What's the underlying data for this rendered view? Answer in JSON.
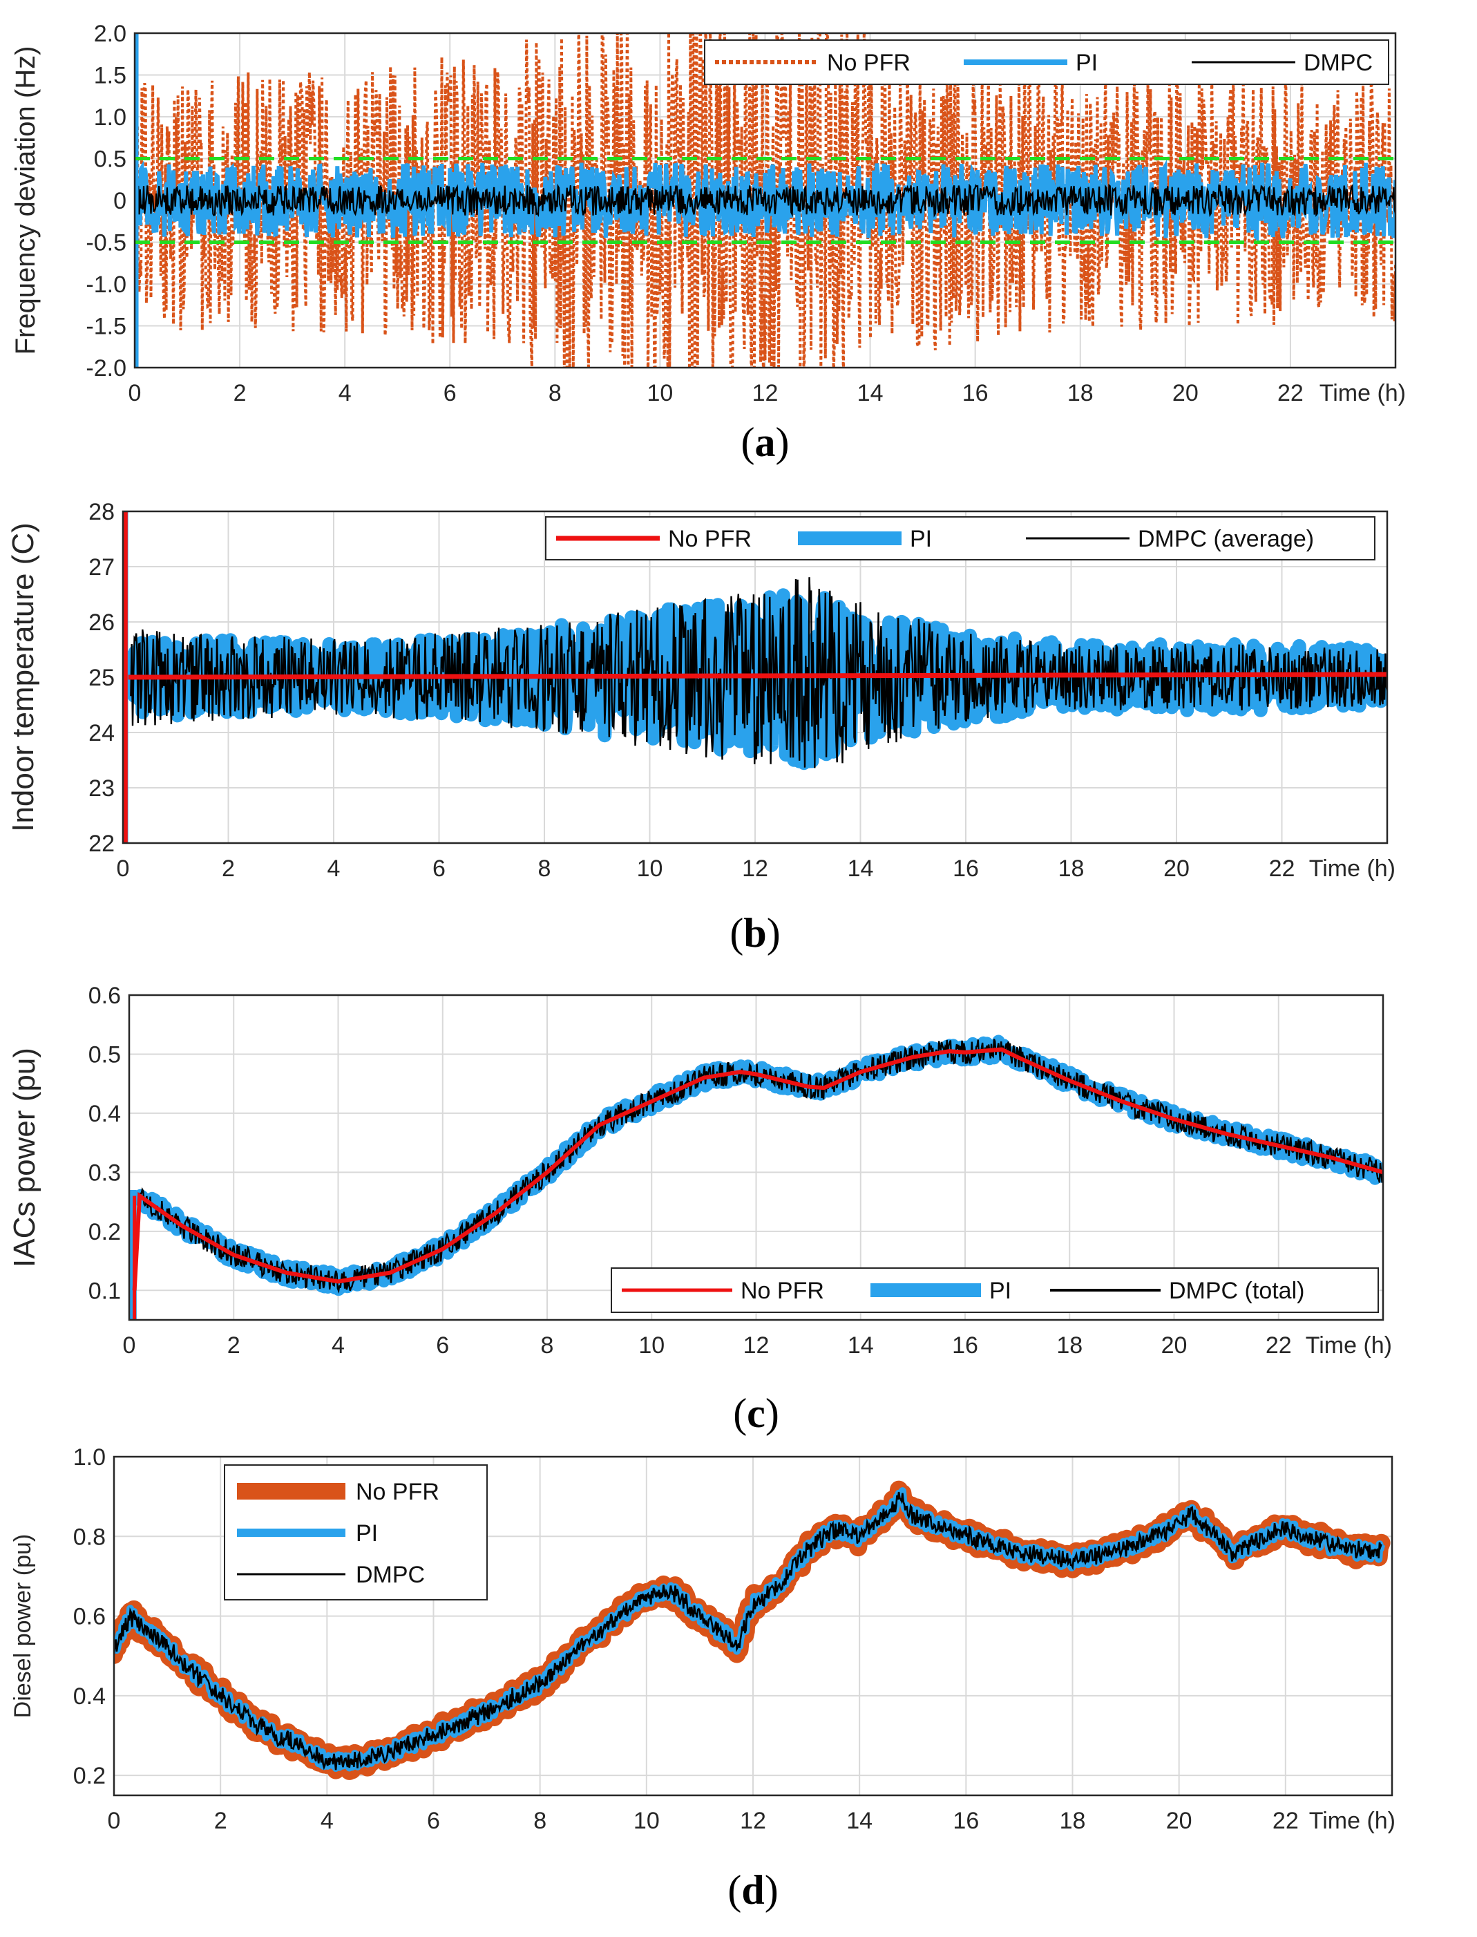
{
  "colors": {
    "orange": "#D95319",
    "blue": "#2AA2EC",
    "black": "#000000",
    "red": "#EE1111",
    "green": "#22DD22"
  },
  "chart_data": [
    {
      "panel": "a",
      "caption": "a",
      "type": "line",
      "ylabel": "Frequency deviation (Hz)",
      "xlabel": "Time (h)",
      "xlim": [
        0,
        24
      ],
      "ylim": [
        -2,
        2
      ],
      "xticks": [
        "0",
        "2",
        "4",
        "6",
        "8",
        "10",
        "12",
        "14",
        "16",
        "18",
        "20",
        "22"
      ],
      "yticks": [
        "-2.0",
        "-1.5",
        "-1.0",
        "-0.5",
        "0",
        "0.5",
        "1.0",
        "1.5",
        "2.0"
      ],
      "reference_lines": [
        0.5,
        -0.5
      ],
      "legend": {
        "placement": "top-right",
        "layout": "horizontal",
        "entries": [
          "No PFR",
          "PI",
          "DMPC"
        ]
      },
      "series": [
        {
          "name": "No PFR",
          "style": "dotted",
          "color": "#D95319",
          "noise_amplitude": 1.6,
          "peak_near_h": 11,
          "saturates_at": [
            -2,
            2
          ]
        },
        {
          "name": "PI",
          "style": "thick",
          "color": "#2AA2EC",
          "noise_amplitude": 0.45
        },
        {
          "name": "DMPC",
          "style": "solid",
          "color": "#000000",
          "noise_amplitude": 0.18
        }
      ]
    },
    {
      "panel": "b",
      "caption": "b",
      "type": "line",
      "ylabel": "Indoor temperature (C)",
      "xlabel": "Time (h)",
      "xlim": [
        0,
        24
      ],
      "ylim": [
        22,
        28
      ],
      "xticks": [
        "0",
        "2",
        "4",
        "6",
        "8",
        "10",
        "12",
        "14",
        "16",
        "18",
        "20",
        "22"
      ],
      "yticks": [
        "22",
        "23",
        "24",
        "25",
        "26",
        "27",
        "28"
      ],
      "legend": {
        "placement": "top-right",
        "layout": "horizontal",
        "entries": [
          "No PFR",
          "PI",
          "DMPC (average)"
        ]
      },
      "series": [
        {
          "name": "No PFR",
          "color": "#EE1111",
          "x": [
            0.1,
            24
          ],
          "y": [
            25.0,
            25.05
          ]
        },
        {
          "name": "PI",
          "color": "#2AA2EC",
          "mean": 25.0,
          "envelope": {
            "x": [
              0,
              2,
              4,
              6,
              8,
              10,
              12,
              13,
              14,
              16,
              18,
              20,
              22,
              24
            ],
            "amp": [
              0.7,
              0.7,
              0.6,
              0.7,
              0.9,
              1.2,
              1.4,
              1.6,
              1.2,
              0.8,
              0.6,
              0.6,
              0.6,
              0.5
            ]
          }
        },
        {
          "name": "DMPC (average)",
          "color": "#000000",
          "mean": 25.0,
          "envelope": {
            "x": [
              0,
              2,
              4,
              6,
              8,
              10,
              12,
              13,
              14,
              16,
              18,
              20,
              22,
              24
            ],
            "amp": [
              0.9,
              0.8,
              0.7,
              0.8,
              1.0,
              1.3,
              1.6,
              1.9,
              1.4,
              0.8,
              0.6,
              0.6,
              0.6,
              0.5
            ]
          }
        }
      ]
    },
    {
      "panel": "c",
      "caption": "c",
      "type": "line",
      "ylabel": "IACs  power (pu)",
      "xlabel": "Time (h)",
      "xlim": [
        0,
        24
      ],
      "ylim": [
        0.05,
        0.6
      ],
      "xticks": [
        "0",
        "2",
        "4",
        "6",
        "8",
        "10",
        "12",
        "14",
        "16",
        "18",
        "20",
        "22"
      ],
      "yticks": [
        "0.1",
        "0.2",
        "0.3",
        "0.4",
        "0.5",
        "0.6"
      ],
      "legend": {
        "placement": "bottom-right",
        "layout": "horizontal",
        "entries": [
          "No PFR",
          "PI",
          "DMPC (total)"
        ]
      },
      "series": [
        {
          "name": "No PFR",
          "color": "#EE1111",
          "x": [
            0.1,
            0.2,
            1,
            2,
            3,
            4,
            5,
            6,
            7,
            8,
            9,
            10,
            11,
            11.7,
            12,
            13,
            13.3,
            14,
            15,
            15.7,
            16,
            16.7,
            17,
            18,
            19,
            20,
            21,
            22,
            23,
            24
          ],
          "y": [
            0.1,
            0.26,
            0.21,
            0.16,
            0.13,
            0.115,
            0.13,
            0.17,
            0.23,
            0.3,
            0.38,
            0.42,
            0.46,
            0.47,
            0.466,
            0.445,
            0.443,
            0.47,
            0.495,
            0.505,
            0.503,
            0.508,
            0.495,
            0.455,
            0.42,
            0.39,
            0.365,
            0.345,
            0.325,
            0.3
          ]
        },
        {
          "name": "PI",
          "color": "#2AA2EC",
          "follows": "No PFR",
          "noise_amplitude": 0.015
        },
        {
          "name": "DMPC (total)",
          "color": "#000000",
          "follows": "No PFR",
          "noise_amplitude": 0.02
        }
      ]
    },
    {
      "panel": "d",
      "caption": "d",
      "type": "line",
      "ylabel": "Diesel power (pu)",
      "xlabel": "Time (h)",
      "xlim": [
        0,
        24
      ],
      "ylim": [
        0.15,
        1.0
      ],
      "xticks": [
        "0",
        "2",
        "4",
        "6",
        "8",
        "10",
        "12",
        "14",
        "16",
        "18",
        "20",
        "22"
      ],
      "yticks": [
        "0.2",
        "0.4",
        "0.6",
        "0.8",
        "1.0"
      ],
      "legend": {
        "placement": "top-left",
        "layout": "vertical",
        "entries": [
          "No PFR",
          "PI",
          "DMPC"
        ]
      },
      "series": [
        {
          "name": "No PFR",
          "color": "#D95319",
          "follows": "DMPC",
          "band": 0.05
        },
        {
          "name": "PI",
          "color": "#2AA2EC",
          "follows": "DMPC",
          "band": 0.02
        },
        {
          "name": "DMPC",
          "color": "#000000",
          "x": [
            0,
            0.3,
            1,
            2,
            3,
            3.5,
            4,
            5,
            6,
            7,
            8,
            9,
            10,
            10.5,
            11,
            11.5,
            11.7,
            12,
            12.5,
            13,
            13.5,
            14,
            14.5,
            14.8,
            15,
            16,
            17,
            18,
            19,
            20,
            20.2,
            21,
            22,
            23,
            23.8
          ],
          "y": [
            0.52,
            0.6,
            0.52,
            0.4,
            0.3,
            0.28,
            0.23,
            0.25,
            0.3,
            0.36,
            0.43,
            0.55,
            0.65,
            0.66,
            0.6,
            0.55,
            0.52,
            0.63,
            0.68,
            0.76,
            0.82,
            0.8,
            0.86,
            0.9,
            0.85,
            0.8,
            0.76,
            0.74,
            0.77,
            0.83,
            0.86,
            0.76,
            0.82,
            0.77,
            0.76
          ]
        }
      ]
    }
  ]
}
